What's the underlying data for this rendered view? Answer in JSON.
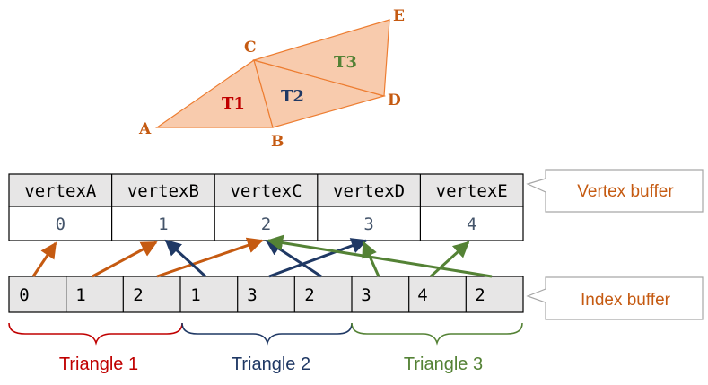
{
  "vertices": [
    "A",
    "B",
    "C",
    "D",
    "E"
  ],
  "triangle_names": [
    "T1",
    "T2",
    "T3"
  ],
  "vertex_buffer": {
    "names": [
      "vertexA",
      "vertexB",
      "vertexC",
      "vertexD",
      "vertexE"
    ],
    "indices": [
      "0",
      "1",
      "2",
      "3",
      "4"
    ],
    "label": "Vertex buffer"
  },
  "index_buffer": {
    "values": [
      "0",
      "1",
      "2",
      "1",
      "3",
      "2",
      "3",
      "4",
      "2"
    ],
    "label": "Index buffer"
  },
  "groups": [
    "Triangle 1",
    "Triangle 2",
    "Triangle 3"
  ],
  "colors": {
    "orange": "#C55A11",
    "navy": "#1F3864",
    "green": "#548235",
    "red": "#C00000",
    "triangle_fill": "#F8CBAD",
    "triangle_stroke": "#ED7D31",
    "buffer_fill": "#E7E6E6"
  }
}
